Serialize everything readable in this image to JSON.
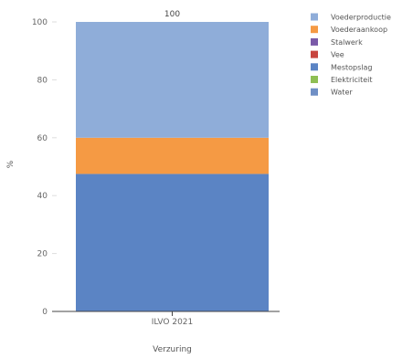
{
  "chart_data": {
    "type": "bar",
    "stacked": true,
    "categories": [
      "ILVO 2021"
    ],
    "series": [
      {
        "name": "Voederproductie",
        "values": [
          40
        ],
        "color": "#8fadd9"
      },
      {
        "name": "Voederaankoop",
        "values": [
          12.5
        ],
        "color": "#f59a44"
      },
      {
        "name": "Stalwerk",
        "values": [
          0
        ],
        "color": "#7a5aa8"
      },
      {
        "name": "Vee",
        "values": [
          0
        ],
        "color": "#c8453e"
      },
      {
        "name": "Mestopslag",
        "values": [
          47.5
        ],
        "color": "#5b84c4"
      },
      {
        "name": "Elektriciteit",
        "values": [
          0
        ],
        "color": "#8fbf54"
      },
      {
        "name": "Water",
        "values": [
          0
        ],
        "color": "#6f8fc5"
      }
    ],
    "total_label": "100",
    "xlabel": "Verzuring",
    "ylabel": "%",
    "ylim": [
      0,
      100
    ],
    "yticks": [
      0,
      20,
      40,
      60,
      80,
      100
    ],
    "legend_position": "top-right"
  }
}
